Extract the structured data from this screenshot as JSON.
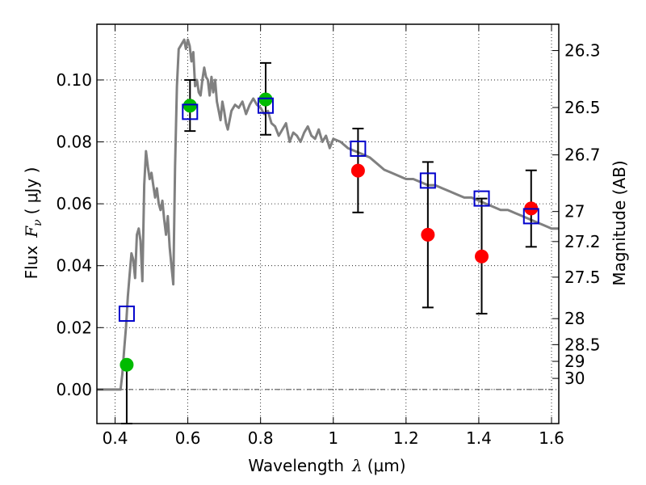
{
  "chart_data": {
    "type": "scatter",
    "title": "",
    "xlabel": "Wavelength",
    "xlabel_symbol": "λ",
    "xlabel_unit": "(μm)",
    "ylabel": "Flux",
    "ylabel_symbol": "F",
    "ylabel_subscript": "ν",
    "ylabel_unit": "( μJy )",
    "ylabel_right": "Magnitude (AB)",
    "xlim": [
      0.35,
      1.62
    ],
    "ylim": [
      -0.011,
      0.118
    ],
    "grid": true,
    "x_ticks": [
      0.4,
      0.6,
      0.8,
      1.0,
      1.2,
      1.4,
      1.6
    ],
    "x_tick_labels": [
      "0.4",
      "0.6",
      "0.8",
      "1",
      "1.2",
      "1.4",
      "1.6"
    ],
    "y_ticks": [
      0.0,
      0.02,
      0.04,
      0.06,
      0.08,
      0.1
    ],
    "y_tick_labels": [
      "0.00",
      "0.02",
      "0.04",
      "0.06",
      "0.08",
      "0.10"
    ],
    "right_ticks": [
      {
        "label": "26.3",
        "flux": 0.1095
      },
      {
        "label": "26.5",
        "flux": 0.0911
      },
      {
        "label": "26.7",
        "flux": 0.0758
      },
      {
        "label": "27",
        "flux": 0.0575
      },
      {
        "label": "27.2",
        "flux": 0.0478
      },
      {
        "label": "27.5",
        "flux": 0.0363
      },
      {
        "label": "28",
        "flux": 0.0229
      },
      {
        "label": "28.5",
        "flux": 0.0145
      },
      {
        "label": "29",
        "flux": 0.0091
      },
      {
        "label": "30",
        "flux": 0.0036
      }
    ],
    "model_spectrum": {
      "color": "#808080",
      "x": [
        0.35,
        0.4,
        0.415,
        0.42,
        0.425,
        0.43,
        0.435,
        0.44,
        0.445,
        0.45,
        0.455,
        0.46,
        0.465,
        0.47,
        0.475,
        0.48,
        0.485,
        0.49,
        0.495,
        0.5,
        0.505,
        0.51,
        0.515,
        0.52,
        0.525,
        0.53,
        0.535,
        0.54,
        0.545,
        0.55,
        0.555,
        0.56,
        0.565,
        0.57,
        0.575,
        0.58,
        0.585,
        0.59,
        0.595,
        0.6,
        0.605,
        0.61,
        0.615,
        0.62,
        0.625,
        0.63,
        0.635,
        0.64,
        0.645,
        0.65,
        0.655,
        0.66,
        0.665,
        0.67,
        0.675,
        0.68,
        0.685,
        0.69,
        0.695,
        0.7,
        0.705,
        0.71,
        0.72,
        0.73,
        0.74,
        0.75,
        0.76,
        0.77,
        0.78,
        0.79,
        0.8,
        0.81,
        0.82,
        0.83,
        0.84,
        0.85,
        0.86,
        0.87,
        0.88,
        0.89,
        0.9,
        0.91,
        0.92,
        0.93,
        0.94,
        0.95,
        0.96,
        0.97,
        0.98,
        0.99,
        1.0,
        1.02,
        1.04,
        1.06,
        1.08,
        1.1,
        1.12,
        1.14,
        1.16,
        1.18,
        1.2,
        1.22,
        1.24,
        1.26,
        1.28,
        1.3,
        1.32,
        1.34,
        1.36,
        1.38,
        1.4,
        1.42,
        1.44,
        1.46,
        1.48,
        1.5,
        1.52,
        1.54,
        1.56,
        1.58,
        1.6,
        1.62
      ],
      "y": [
        0.0,
        0.0,
        0.0,
        0.005,
        0.013,
        0.02,
        0.03,
        0.037,
        0.044,
        0.042,
        0.036,
        0.05,
        0.052,
        0.048,
        0.035,
        0.066,
        0.077,
        0.072,
        0.068,
        0.07,
        0.066,
        0.062,
        0.065,
        0.06,
        0.058,
        0.061,
        0.055,
        0.05,
        0.056,
        0.046,
        0.04,
        0.034,
        0.072,
        0.098,
        0.11,
        0.111,
        0.112,
        0.113,
        0.11,
        0.113,
        0.111,
        0.106,
        0.109,
        0.098,
        0.1,
        0.096,
        0.095,
        0.1,
        0.104,
        0.101,
        0.1,
        0.095,
        0.101,
        0.096,
        0.1,
        0.093,
        0.09,
        0.087,
        0.093,
        0.09,
        0.086,
        0.084,
        0.09,
        0.092,
        0.091,
        0.093,
        0.089,
        0.092,
        0.094,
        0.092,
        0.091,
        0.089,
        0.09,
        0.086,
        0.085,
        0.082,
        0.084,
        0.086,
        0.08,
        0.083,
        0.082,
        0.08,
        0.083,
        0.085,
        0.082,
        0.081,
        0.084,
        0.08,
        0.082,
        0.078,
        0.081,
        0.08,
        0.078,
        0.077,
        0.076,
        0.075,
        0.073,
        0.071,
        0.07,
        0.069,
        0.068,
        0.068,
        0.067,
        0.066,
        0.066,
        0.065,
        0.064,
        0.063,
        0.062,
        0.062,
        0.061,
        0.06,
        0.059,
        0.058,
        0.058,
        0.057,
        0.056,
        0.055,
        0.054,
        0.053,
        0.052,
        0.052
      ]
    },
    "series": [
      {
        "marker": "circle",
        "color": "#00bb00",
        "points": [
          {
            "x": 0.432,
            "y": 0.008,
            "yerr_low": -0.011,
            "yerr_high": 0.008
          },
          {
            "x": 0.606,
            "y": 0.0917,
            "yerr_low": 0.0835,
            "yerr_high": 0.1
          },
          {
            "x": 0.814,
            "y": 0.0937,
            "yerr_low": 0.0823,
            "yerr_high": 0.1055
          }
        ]
      },
      {
        "marker": "circle",
        "color": "#ff0000",
        "points": [
          {
            "x": 1.068,
            "y": 0.0707,
            "yerr_low": 0.0572,
            "yerr_high": 0.0843
          },
          {
            "x": 1.26,
            "y": 0.05,
            "yerr_low": 0.0265,
            "yerr_high": 0.0735
          },
          {
            "x": 1.408,
            "y": 0.043,
            "yerr_low": 0.0245,
            "yerr_high": 0.0617
          },
          {
            "x": 1.544,
            "y": 0.0585,
            "yerr_low": 0.0461,
            "yerr_high": 0.0708
          }
        ]
      },
      {
        "marker": "square",
        "color": "#0000cc",
        "points": [
          {
            "x": 0.432,
            "y": 0.0245
          },
          {
            "x": 0.606,
            "y": 0.0897
          },
          {
            "x": 0.814,
            "y": 0.0917
          },
          {
            "x": 1.068,
            "y": 0.0778
          },
          {
            "x": 1.26,
            "y": 0.0675
          },
          {
            "x": 1.408,
            "y": 0.0617
          },
          {
            "x": 1.544,
            "y": 0.056
          }
        ]
      }
    ]
  }
}
